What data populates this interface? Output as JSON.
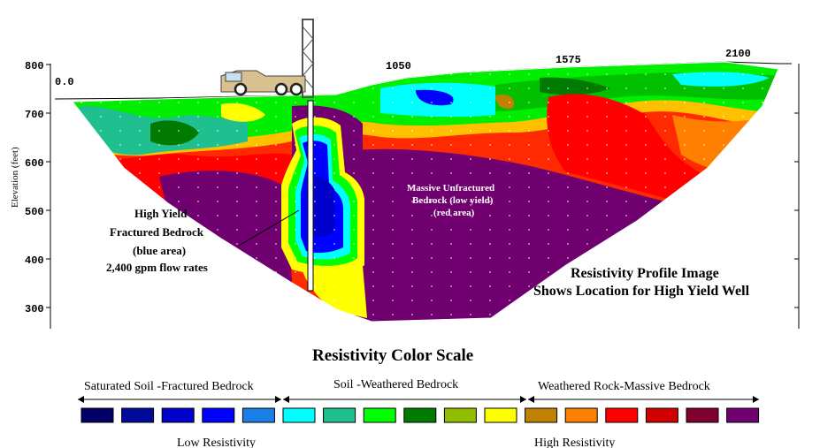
{
  "profile": {
    "station_labels": [
      "0.0",
      "1050",
      "1575",
      "2100"
    ],
    "elevation_ticks": [
      "800",
      "700",
      "600",
      "500",
      "400",
      "300"
    ],
    "y_axis_label": "Elevation (feet)",
    "blue_annotation": [
      "High Yield",
      "Fractured Bedrock",
      "(blue area)",
      "2,400 gpm flow rates"
    ],
    "red_annotation": [
      "Massive Unfractured",
      "Bedrock (low yield)",
      "(red area)"
    ],
    "caption": [
      "Resistivity Profile Image",
      "Shows Location for High Yield Well"
    ]
  },
  "scale": {
    "title": "Resistivity Color Scale",
    "categories": [
      "Saturated Soil -Fractured Bedrock",
      "Soil -Weathered Bedrock",
      "Weathered Rock-Massive Bedrock"
    ],
    "swatches": [
      "#000066",
      "#000a9a",
      "#0000cc",
      "#0000ff",
      "#1a7fe6",
      "#00ffff",
      "#1fbf8f",
      "#00ff00",
      "#007a00",
      "#8fbf00",
      "#ffff00",
      "#c08000",
      "#ff8000",
      "#ff0000",
      "#d00000",
      "#800030",
      "#700070"
    ],
    "low_label": "Low Resistivity",
    "high_label": "High Resistivity"
  }
}
